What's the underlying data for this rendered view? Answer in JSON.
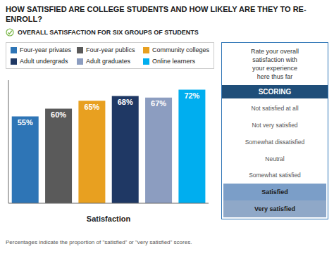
{
  "chart_data": {
    "type": "bar",
    "title": "HOW SATISFIED ARE COLLEGE STUDENTS AND HOW LIKELY ARE THEY TO RE-ENROLL?",
    "subtitle": "OVERALL SATISFACTION FOR SIX GROUPS OF STUDENTS",
    "categories": [
      "Four-year privates",
      "Four-year publics",
      "Community colleges",
      "Adult undergrads",
      "Adult graduates",
      "Online learners"
    ],
    "values": [
      55,
      60,
      65,
      68,
      67,
      72
    ],
    "value_labels": [
      "55%",
      "60%",
      "65%",
      "68%",
      "67%",
      "72%"
    ],
    "colors": [
      "#2E75B6",
      "#5A5A5A",
      "#E8A020",
      "#1F3864",
      "#8C9DC0",
      "#00AEEF"
    ],
    "xlabel": "Satisfaction",
    "ylim": [
      0,
      78
    ],
    "data_labels": true,
    "tick_labels": false,
    "grid": false,
    "legend": "top",
    "annotations": [
      "Rate your overall\nsatisfaction with\nyour experience\nhere thus far",
      "SCORING",
      "Not satisfied at all",
      "Not very satisfied",
      "Somewhat dissatisfied",
      "Neutral",
      "Somewhat satisfied",
      "Satisfied",
      "Very satisfied"
    ],
    "footnote": "Percentages indicate the proportion of \"satisfied\" or \"very satisfied\" scores."
  }
}
